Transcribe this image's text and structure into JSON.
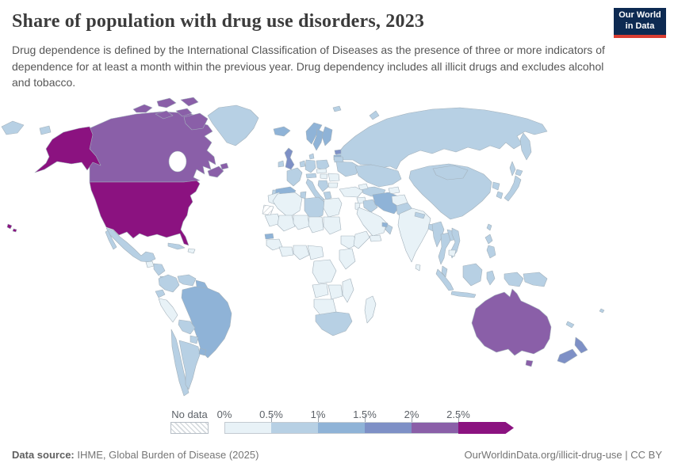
{
  "header": {
    "title": "Share of population with drug use disorders, 2023",
    "subtitle": "Drug dependence is defined by the International Classification of Diseases as the presence of three or more indicators of dependence for at least a month within the previous year. Drug dependency includes all illicit drugs and excludes alcohol and tobacco.",
    "logo": {
      "line1": "Our World",
      "line2": "in Data",
      "bg": "#0d2a52",
      "accent": "#d93d32"
    }
  },
  "legend": {
    "no_data_label": "No data",
    "tick_labels": [
      "0%",
      "0.5%",
      "1%",
      "1.5%",
      "2%",
      "2.5%"
    ],
    "bins": [
      {
        "label": "0-0.5%",
        "color": "#e8f2f7"
      },
      {
        "label": "0.5-1%",
        "color": "#b7d0e4"
      },
      {
        "label": "1-1.5%",
        "color": "#8fb3d7"
      },
      {
        "label": "1.5-2%",
        "color": "#7e90c6"
      },
      {
        "label": "2-2.5%",
        "color": "#8a5fa8"
      },
      {
        "label": "2.5%+",
        "color": "#8b1280"
      }
    ],
    "no_data_hatch": "#d5dade"
  },
  "footer": {
    "source_label": "Data source:",
    "source_text": " IHME, Global Burden of Disease (2025)",
    "rights": "OurWorldinData.org/illicit-drug-use | CC BY"
  },
  "chart_data": {
    "type": "choropleth",
    "title": "Share of population with drug use disorders, 2023",
    "year": "2023",
    "unit": "% of population",
    "legend_position": "bottom",
    "bins": [
      "0-0.5%",
      "0.5-1%",
      "1-1.5%",
      "1.5-2%",
      "2-2.5%",
      "2.5%+"
    ],
    "regions": {
      "united-states": 5,
      "canada": 4,
      "australia": 4,
      "united-kingdom": 3,
      "estonia": 3,
      "new-zealand": 3,
      "iceland": 2,
      "norway": 2,
      "sweden": 2,
      "finland": 2,
      "spain": 2,
      "iran": 2,
      "brazil": 2,
      "uruguay": 2,
      "guyana": 2,
      "senegal": 2,
      "latvia-lithuania": 2,
      "uae": 2,
      "russia": 1,
      "greenland": 1,
      "mexico": 1,
      "cuba": 1,
      "honduras-nicaragua": 1,
      "costa-panama": 1,
      "colombia": 1,
      "venezuela": 1,
      "ecuador": 1,
      "bolivia": 1,
      "paraguay": 1,
      "chile": 1,
      "argentina": 1,
      "ireland": 1,
      "denmark": 1,
      "poland": 1,
      "germany": 1,
      "benelux": 1,
      "france": 1,
      "portugal": 1,
      "italy": 1,
      "switzerland-austria": 1,
      "balkans": 1,
      "greece": 1,
      "ukraine": 1,
      "belarus": 1,
      "kazakhstan": 1,
      "uzbekistan-turkmenistan": 1,
      "iraq": 1,
      "oman": 1,
      "pakistan": 1,
      "nepal": 1,
      "bangladesh": 1,
      "china": 1,
      "mongolia": 1,
      "north-korea": 1,
      "south-korea": 1,
      "japan": 1,
      "taiwan": 1,
      "myanmar": 1,
      "thailand": 1,
      "laos": 1,
      "vietnam": 1,
      "malaysia": 1,
      "indonesia": 1,
      "papua-new-guinea": 1,
      "philippines": 1,
      "tunisia": 1,
      "libya": 1,
      "south-africa": 1,
      "new-caledonia": 1,
      "fiji": 1,
      "peru": 0,
      "guatemala": 0,
      "hispaniola": 0,
      "morocco": 0,
      "algeria": 0,
      "egypt": 0,
      "mauritania": 0,
      "mali": 0,
      "niger": 0,
      "chad": 0,
      "sudan": 0,
      "guinea-region": 0,
      "ivory-ghana": 0,
      "nigeria": 0,
      "cameroon-car": 0,
      "ethiopia": 0,
      "somalia": 0,
      "kenya-tanzania": 0,
      "drc": 0,
      "angola": 0,
      "zambia-zimbabwe": 0,
      "mozambique": 0,
      "namibia-botswana": 0,
      "madagascar": 0,
      "turkey": 0,
      "syria": 0,
      "saudi-arabia": 0,
      "yemen": 0,
      "israel-jordan": 0,
      "afghanistan": 0,
      "india": 0,
      "sri-lanka": 0,
      "czech-slovakia": 0,
      "hungary": 0,
      "romania": 0,
      "bulgaria": 0,
      "cambodia": 0,
      "kyrgyz-tajik": 0,
      "caucasus": 0
    },
    "no_data_regions": [
      "western-sahara"
    ]
  },
  "map": {
    "ocean": "#ffffff",
    "border": "#a3b1bb"
  }
}
